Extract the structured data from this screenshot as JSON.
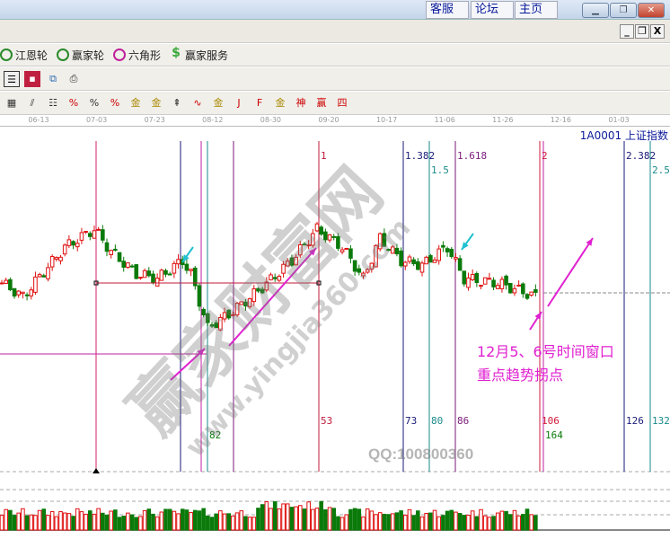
{
  "titlebar": {
    "links": [
      "客服",
      "论坛",
      "主页"
    ],
    "window_buttons": [
      "minimize",
      "restore",
      "close"
    ]
  },
  "mdi_buttons": [
    "_",
    "restore",
    "X"
  ],
  "plugins": [
    {
      "label": "江恩轮",
      "icon": "gann-wheel-icon",
      "color": "#2a8a2a"
    },
    {
      "label": "赢家轮",
      "icon": "winner-wheel-icon",
      "color": "#2a8a2a"
    },
    {
      "label": "六角形",
      "icon": "hexagon-icon",
      "color": "#c0209a"
    },
    {
      "label": "赢家服务",
      "icon": "dollar-icon",
      "color": "#3aa83a"
    }
  ],
  "file_tools": [
    "report-icon",
    "save-icon",
    "network-icon",
    "print-icon"
  ],
  "draw_tools": [
    "▦",
    "⫽",
    "☷",
    "%",
    "%",
    "%",
    "金",
    "金",
    "⇞",
    "∿",
    "金",
    "J",
    "F",
    "金",
    "神",
    "赢",
    "四"
  ],
  "date_axis": [
    "06-13",
    "07-03",
    "07-23",
    "08-12",
    "08-30",
    "09-20",
    "10-17",
    "11-06",
    "11-26",
    "12-16",
    "01-03"
  ],
  "header": {
    "code": "1A0001",
    "name": "上证指数"
  },
  "time_lines": [
    {
      "top": "",
      "bottom": "",
      "color": "#d0206a"
    },
    {
      "top": "",
      "bottom": "",
      "color": "#1a1a7a"
    },
    {
      "top": "",
      "bottom": "",
      "color": "#c020a0"
    },
    {
      "top": "",
      "bottom": "82",
      "color": "#1a8a8a"
    },
    {
      "top": "",
      "bottom": "",
      "color": "#7a1a7a"
    },
    {
      "top": "1",
      "bottom": "53",
      "color": "#c01a3a"
    },
    {
      "top": "1.382",
      "bottom": "73",
      "color": "#1a1a7a"
    },
    {
      "top": "1.5",
      "bottom": "80",
      "color": "#1a8a8a"
    },
    {
      "top": "1.618",
      "bottom": "86",
      "color": "#7a1a7a"
    },
    {
      "top": "2",
      "bottom": "106",
      "color": "#d01a3a"
    },
    {
      "top": "",
      "bottom": "164",
      "color": "#c020a0"
    },
    {
      "top": "2.382",
      "bottom": "126",
      "color": "#1a1a7a"
    },
    {
      "top": "2.5",
      "bottom": "132",
      "color": "#1a8a8a"
    }
  ],
  "annotation": {
    "line1": "12月5、6号时间窗口",
    "line2": "重点趋势拐点",
    "color": "#e020d0"
  },
  "watermark": {
    "name": "赢家财富网",
    "url": "www.yingjia360.com",
    "qq": "QQ:100800360"
  },
  "price_keypoints": [
    [
      0,
      15
    ],
    [
      5,
      0
    ],
    [
      15,
      55
    ],
    [
      22,
      75
    ],
    [
      26,
      50
    ],
    [
      32,
      25
    ],
    [
      37,
      20
    ],
    [
      43,
      40
    ],
    [
      45,
      25
    ],
    [
      49,
      -35
    ],
    [
      54,
      -20
    ],
    [
      62,
      10
    ],
    [
      69,
      40
    ],
    [
      75,
      75
    ],
    [
      81,
      55
    ],
    [
      86,
      20
    ],
    [
      90,
      65
    ],
    [
      95,
      40
    ],
    [
      100,
      35
    ],
    [
      106,
      55
    ],
    [
      110,
      20
    ],
    [
      118,
      15
    ],
    [
      127,
      0
    ]
  ],
  "colors": {
    "up": "#e01010",
    "down": "#0a7a0a",
    "accent": "#e020d0",
    "cyan_marker": "#20c0d0"
  }
}
